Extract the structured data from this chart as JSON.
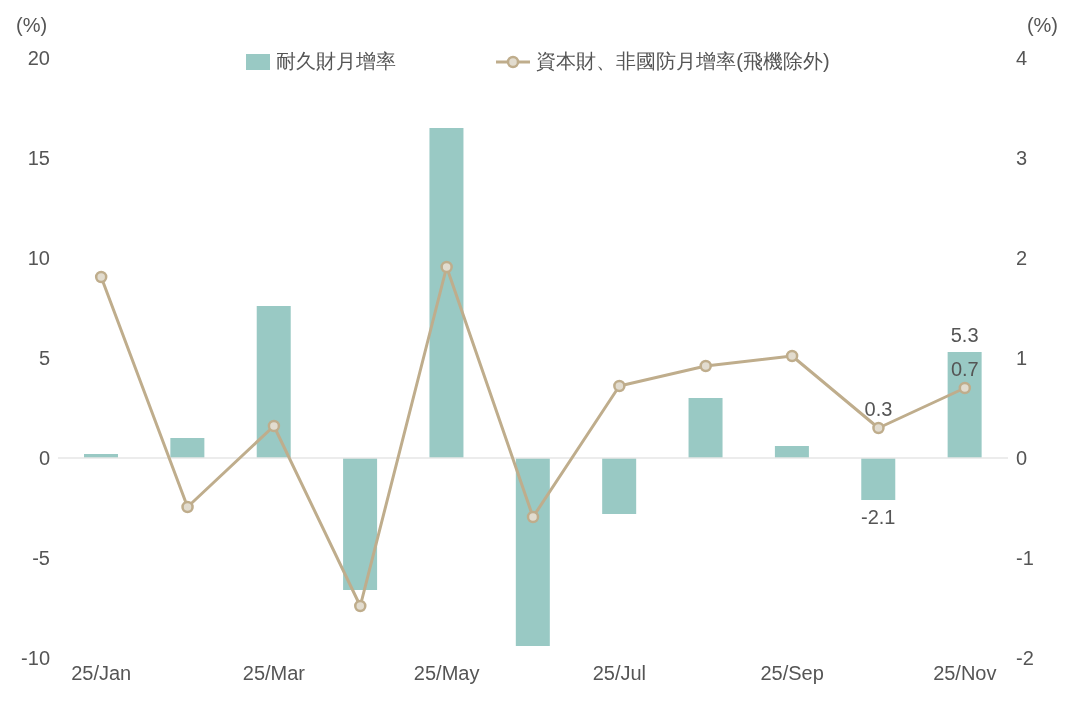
{
  "chart_data": {
    "type": "bar",
    "ylabel": "(%)",
    "y2label": "(%)",
    "categories": [
      "25/Jan",
      null,
      "25/Mar",
      null,
      "25/May",
      null,
      "25/Jul",
      null,
      "25/Sep",
      null,
      "25/Nov"
    ],
    "series": [
      {
        "name": "耐久財月增率",
        "color": "#99c9c4",
        "values": [
          0.2,
          1.0,
          7.6,
          -6.6,
          16.5,
          -9.4,
          -2.8,
          3.0,
          0.6,
          -2.1,
          5.3
        ],
        "value_labels": [
          null,
          null,
          null,
          null,
          null,
          null,
          null,
          null,
          null,
          "-2.1",
          "5.3"
        ]
      },
      {
        "name": "資本財、非國防月增率(飛機除外)",
        "type": "line",
        "axis": "y2",
        "color": "#bfad8c",
        "marker": "circle",
        "values": [
          1.81,
          -0.49,
          0.32,
          -1.48,
          1.91,
          -0.59,
          0.72,
          0.92,
          1.02,
          0.3,
          0.7
        ],
        "value_labels": [
          null,
          null,
          null,
          null,
          null,
          null,
          null,
          null,
          null,
          "0.3",
          "0.7"
        ]
      }
    ],
    "ylim": [
      -10,
      20
    ],
    "yticks": [
      -10,
      -5,
      0,
      5,
      10,
      15,
      20
    ],
    "y2lim": [
      -2,
      4
    ],
    "y2ticks": [
      -2,
      -1,
      0,
      1,
      2,
      3,
      4
    ],
    "ref_lines": [
      {
        "axis": "y",
        "value": 0,
        "color": "#e6e6e6"
      }
    ],
    "legend": "top"
  }
}
